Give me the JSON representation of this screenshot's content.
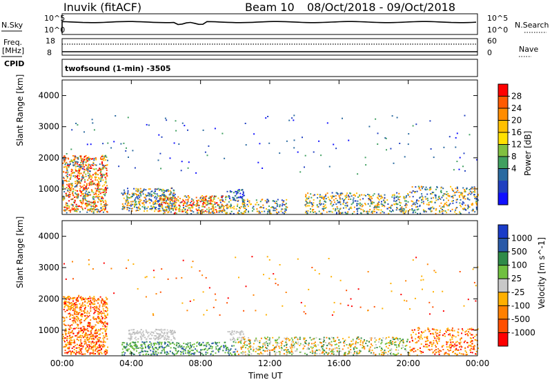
{
  "header": {
    "station": "Inuvik (fitACF)",
    "beam": "Beam 10",
    "date_range": "08/Oct/2018 - 09/Oct/2018"
  },
  "top_panels": {
    "nsky_label": "N.Sky",
    "nsearch_label": "N.Search",
    "noise_ticks": [
      "10^5",
      "10^0"
    ],
    "freq_label_1": "Freq.",
    "freq_label_2": "[MHz]",
    "freq_ticks": [
      "18",
      "8"
    ],
    "nave_label": "Nave",
    "nave_ticks": [
      "60",
      "0"
    ],
    "cpid_label": "CPID",
    "cpid_value": "twofsound (1-min) -3505"
  },
  "chart_data": [
    {
      "type": "heatmap",
      "name": "power",
      "ylabel": "Slant Range [km]",
      "xlabel": "",
      "xticks": [
        "00:00",
        "04:00",
        "08:00",
        "12:00",
        "16:00",
        "20:00",
        "00:00"
      ],
      "yticks": [
        "1000",
        "2000",
        "3000",
        "4000"
      ],
      "ylim": [
        180,
        4500
      ],
      "colorbar": {
        "label": "Power [dB]",
        "ticks": [
          "28",
          "24",
          "20",
          "16",
          "12",
          "8",
          "4"
        ],
        "colors": [
          "#ff0000",
          "#ff5a00",
          "#ff8c00",
          "#ffc000",
          "#ffe000",
          "#80c040",
          "#40a060",
          "#2a6aa0",
          "#2040c0",
          "#1010ff"
        ]
      },
      "scatter_regions": [
        {
          "t0": 0.0,
          "t1": 2.6,
          "r0": 250,
          "r1": 2100,
          "density": 0.55,
          "level": "high"
        },
        {
          "t0": 3.4,
          "t1": 6.5,
          "r0": 300,
          "r1": 1050,
          "density": 0.5,
          "level": "mid"
        },
        {
          "t0": 5.5,
          "t1": 9.5,
          "r0": 220,
          "r1": 800,
          "density": 0.5,
          "level": "high"
        },
        {
          "t0": 9.5,
          "t1": 10.5,
          "r0": 700,
          "r1": 1000,
          "density": 0.5,
          "level": "low"
        },
        {
          "t0": 9.0,
          "t1": 13.0,
          "r0": 220,
          "r1": 700,
          "density": 0.35,
          "level": "mid"
        },
        {
          "t0": 14.0,
          "t1": 20.0,
          "r0": 220,
          "r1": 900,
          "density": 0.35,
          "level": "mid"
        },
        {
          "t0": 20.0,
          "t1": 24.0,
          "r0": 220,
          "r1": 1100,
          "density": 0.3,
          "level": "mid"
        },
        {
          "t0": 0.0,
          "t1": 24.0,
          "r0": 1500,
          "r1": 3400,
          "density": 0.01,
          "level": "low"
        }
      ]
    },
    {
      "type": "heatmap",
      "name": "velocity",
      "ylabel": "Slant Range [km]",
      "xlabel": "Time UT",
      "xticks": [
        "00:00",
        "04:00",
        "08:00",
        "12:00",
        "16:00",
        "20:00",
        "00:00"
      ],
      "yticks": [
        "1000",
        "2000",
        "3000",
        "4000"
      ],
      "ylim": [
        180,
        4500
      ],
      "colorbar": {
        "label": "Velocity [m s^-1]",
        "ticks": [
          "1000",
          "500",
          "100",
          "25",
          "-25",
          "-100",
          "-500",
          "-1000"
        ],
        "colors": [
          "#1a3cc8",
          "#2a5aa8",
          "#2e8a48",
          "#70c040",
          "#c8c8c8",
          "#ffb000",
          "#ff8000",
          "#ff5000",
          "#ff0000"
        ]
      },
      "scatter_regions": [
        {
          "t0": 0.0,
          "t1": 2.6,
          "r0": 250,
          "r1": 2100,
          "density": 0.55,
          "level": "neg"
        },
        {
          "t0": 3.8,
          "t1": 6.5,
          "r0": 700,
          "r1": 1050,
          "density": 0.6,
          "level": "zero"
        },
        {
          "t0": 3.4,
          "t1": 10.0,
          "r0": 220,
          "r1": 650,
          "density": 0.45,
          "level": "pos"
        },
        {
          "t0": 9.5,
          "t1": 10.5,
          "r0": 700,
          "r1": 1000,
          "density": 0.5,
          "level": "zero"
        },
        {
          "t0": 10.0,
          "t1": 20.0,
          "r0": 220,
          "r1": 800,
          "density": 0.35,
          "level": "mixed"
        },
        {
          "t0": 20.0,
          "t1": 24.0,
          "r0": 220,
          "r1": 1100,
          "density": 0.3,
          "level": "neg"
        },
        {
          "t0": 0.0,
          "t1": 24.0,
          "r0": 1500,
          "r1": 3400,
          "density": 0.01,
          "level": "neg"
        }
      ]
    }
  ]
}
